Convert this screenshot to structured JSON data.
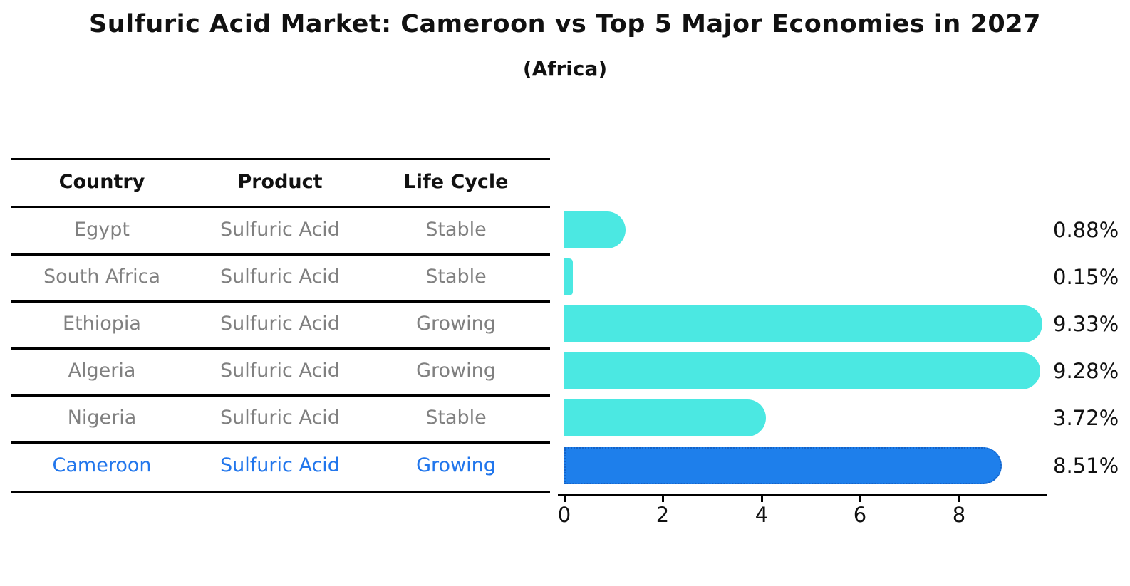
{
  "title": "Sulfuric Acid Market: Cameroon vs Top 5 Major Economies in 2027",
  "subtitle": "(Africa)",
  "table": {
    "headers": [
      "Country",
      "Product",
      "Life Cycle"
    ],
    "rows": [
      {
        "country": "Egypt",
        "product": "Sulfuric Acid",
        "life_cycle": "Stable",
        "highlight": false
      },
      {
        "country": "South Africa",
        "product": "Sulfuric Acid",
        "life_cycle": "Stable",
        "highlight": false
      },
      {
        "country": "Ethiopia",
        "product": "Sulfuric Acid",
        "life_cycle": "Growing",
        "highlight": false
      },
      {
        "country": "Algeria",
        "product": "Sulfuric Acid",
        "life_cycle": "Growing",
        "highlight": false
      },
      {
        "country": "Nigeria",
        "product": "Sulfuric Acid",
        "life_cycle": "Stable",
        "highlight": false
      },
      {
        "country": "Cameroon",
        "product": "Sulfuric Acid",
        "life_cycle": "Growing",
        "highlight": true
      }
    ]
  },
  "chart_data": {
    "type": "bar",
    "orientation": "horizontal",
    "categories": [
      "Egypt",
      "South Africa",
      "Ethiopia",
      "Algeria",
      "Nigeria",
      "Cameroon"
    ],
    "values": [
      0.88,
      0.15,
      9.33,
      9.28,
      3.72,
      8.51
    ],
    "labels": [
      "0.88%",
      "0.15%",
      "9.33%",
      "9.28%",
      "3.72%",
      "8.51%"
    ],
    "x_ticks": [
      0,
      2,
      4,
      6,
      8
    ],
    "x_tick_labels": [
      "0",
      "2",
      "4",
      "6",
      "8"
    ],
    "xlim": [
      0,
      9.7
    ],
    "grid": false,
    "legend": "none",
    "bar_color": "#4BE8E2",
    "highlight_color": "#1E7FEB",
    "highlight_border_color": "#1463C8",
    "highlight_index": 5
  },
  "colors": {
    "text_primary": "#111111",
    "text_muted": "#808080",
    "highlight_text": "#2176EC",
    "line": "#000000",
    "background": "#FFFFFF"
  }
}
